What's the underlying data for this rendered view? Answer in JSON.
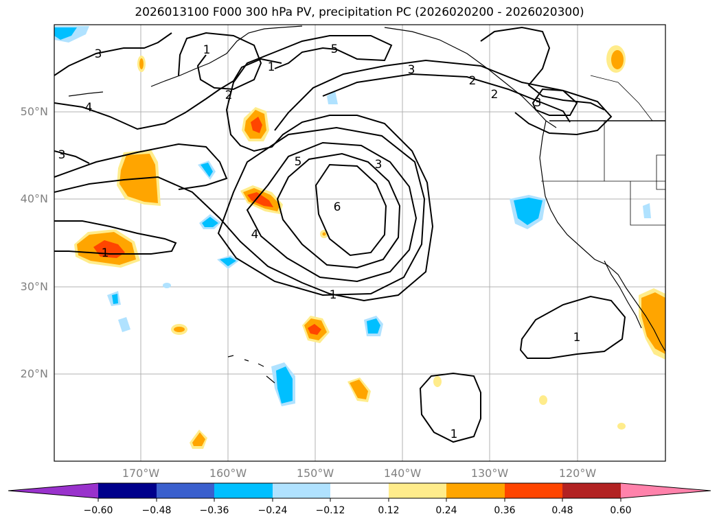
{
  "title": "2026013100 F000 300 hPa PV, precipitation PC (2026020200 - 2026020300)",
  "lat_labels": [
    "50°N",
    "40°N",
    "30°N",
    "20°N"
  ],
  "lon_labels": [
    "170°W",
    "160°W",
    "150°W",
    "140°W",
    "130°W",
    "120°W"
  ],
  "colorbar": {
    "ticks": [
      "−0.60",
      "−0.48",
      "−0.36",
      "−0.24",
      "−0.12",
      "0.12",
      "0.24",
      "0.36",
      "0.48",
      "0.60"
    ],
    "colors": [
      "#9932cc",
      "#00008b",
      "#3a5fcd",
      "#00bfff",
      "#b0e2ff",
      "#ffffff",
      "#ffec8b",
      "#ffa500",
      "#ff4500",
      "#b22222",
      "#ff82ab"
    ]
  },
  "contour_labels": [
    "3",
    "1",
    "5",
    "1",
    "3",
    "2",
    "4",
    "2",
    "2",
    "3",
    "3",
    "5",
    "3",
    "6",
    "4",
    "1",
    "1",
    "1",
    "1"
  ]
}
